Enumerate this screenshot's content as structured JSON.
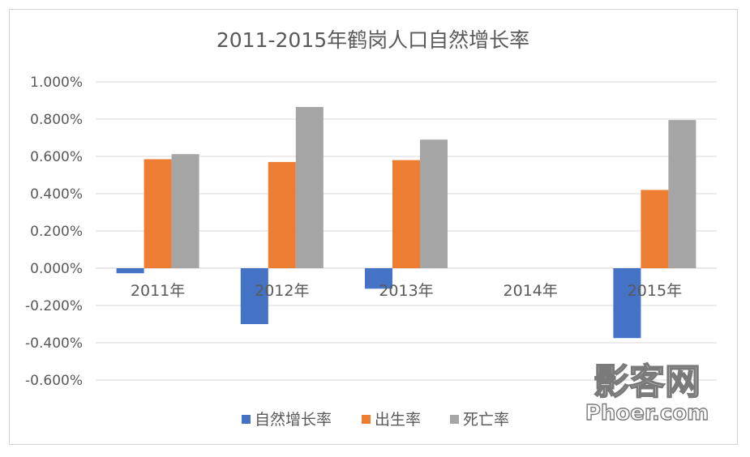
{
  "chart_data": {
    "type": "bar",
    "title": "2011-2015年鹤岗人口自然增长率",
    "categories": [
      "2011年",
      "2012年",
      "2013年",
      "2014年",
      "2015年"
    ],
    "series": [
      {
        "name": "自然增长率",
        "color": "#4472C4",
        "values": [
          -0.027,
          -0.3,
          -0.11,
          null,
          -0.375
        ]
      },
      {
        "name": "出生率",
        "color": "#ED7D31",
        "values": [
          0.585,
          0.57,
          0.58,
          null,
          0.42
        ]
      },
      {
        "name": "死亡率",
        "color": "#A5A5A5",
        "values": [
          0.612,
          0.865,
          0.69,
          null,
          0.795
        ]
      }
    ],
    "ylim": [
      -0.6,
      1.0
    ],
    "yticks": [
      1.0,
      0.8,
      0.6,
      0.4,
      0.2,
      0.0,
      -0.2,
      -0.4,
      -0.6
    ],
    "ytick_labels": [
      "1.000%",
      "0.800%",
      "0.600%",
      "0.400%",
      "0.200%",
      "0.000%",
      "-0.200%",
      "-0.400%",
      "-0.600%"
    ],
    "grid": true,
    "legend": "bottom"
  },
  "watermark": {
    "line1": "影客网",
    "line2": "Phoer.com"
  }
}
